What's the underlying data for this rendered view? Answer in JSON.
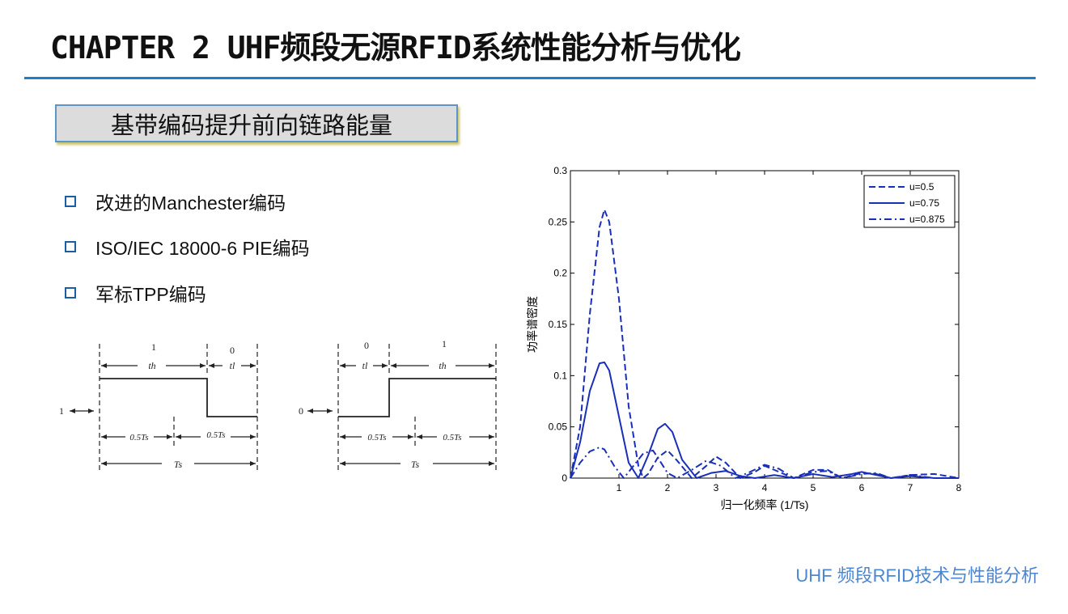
{
  "header": {
    "title": "CHAPTER 2 UHF频段无源RFID系统性能分析与优化"
  },
  "section": {
    "label": "基带编码提升前向链路能量"
  },
  "bullets": [
    "改进的Manchester编码",
    "ISO/IEC 18000-6 PIE编码",
    "军标TPP编码"
  ],
  "footer": {
    "text": "UHF 频段RFID技术与性能分析"
  },
  "colors": {
    "accent": "#1f7fc6",
    "series": "#1a2fb8",
    "footer": "#4a86d4"
  },
  "waveform_left": {
    "level": "1",
    "top_labels": [
      "1",
      "0"
    ],
    "duration_labels": [
      "th",
      "tl"
    ],
    "half_labels": [
      "0.5Ts",
      "0.5Ts"
    ],
    "total_label": "Ts"
  },
  "waveform_right": {
    "level": "0",
    "top_labels": [
      "0",
      "1"
    ],
    "duration_labels": [
      "tl",
      "th"
    ],
    "half_labels": [
      "0.5Ts",
      "0.5Ts"
    ],
    "total_label": "Ts"
  },
  "chart_data": {
    "type": "line",
    "xlabel": "归一化频率 (1/Ts)",
    "ylabel": "功率谱密度",
    "xlim": [
      0,
      8
    ],
    "ylim": [
      0,
      0.3
    ],
    "xticks": [
      1,
      2,
      3,
      4,
      5,
      6,
      7,
      8
    ],
    "yticks": [
      0,
      0.05,
      0.1,
      0.15,
      0.2,
      0.25,
      0.3
    ],
    "ytick_labels": [
      "0",
      "0.05",
      "0.1",
      "0.15",
      "0.2",
      "0.25",
      "0.3"
    ],
    "legend_position": "top-right",
    "grid": false,
    "series": [
      {
        "name": "u=0.5",
        "style": "dashed",
        "x": [
          0,
          0.2,
          0.4,
          0.6,
          0.7,
          0.8,
          1.0,
          1.2,
          1.4,
          1.5,
          1.6,
          1.8,
          2.0,
          2.2,
          2.5,
          2.8,
          3.0,
          3.2,
          3.5,
          3.8,
          4.0,
          4.3,
          4.6,
          5.0,
          5.3,
          5.6,
          6.0,
          6.3,
          6.6,
          7.0,
          7.5,
          8.0
        ],
        "y": [
          0.0,
          0.05,
          0.16,
          0.245,
          0.262,
          0.25,
          0.175,
          0.07,
          0.012,
          0.0,
          0.004,
          0.02,
          0.027,
          0.017,
          0.0,
          0.012,
          0.021,
          0.015,
          0.0,
          0.006,
          0.012,
          0.006,
          0.0,
          0.008,
          0.008,
          0.0,
          0.005,
          0.004,
          0.0,
          0.003,
          0.004,
          0.0
        ]
      },
      {
        "name": "u=0.75",
        "style": "solid",
        "x": [
          0,
          0.2,
          0.4,
          0.6,
          0.7,
          0.8,
          1.0,
          1.2,
          1.4,
          1.6,
          1.8,
          1.95,
          2.1,
          2.3,
          2.6,
          2.9,
          3.2,
          3.5,
          3.8,
          4.2,
          4.6,
          5.0,
          5.4,
          5.8,
          6.0,
          6.2,
          6.6,
          7.0,
          7.5,
          8.0
        ],
        "y": [
          0.0,
          0.035,
          0.085,
          0.112,
          0.113,
          0.105,
          0.06,
          0.015,
          0.0,
          0.022,
          0.048,
          0.053,
          0.045,
          0.018,
          0.0,
          0.005,
          0.007,
          0.002,
          0.0,
          0.003,
          0.0,
          0.004,
          0.001,
          0.004,
          0.006,
          0.004,
          0.0,
          0.002,
          0.0,
          0.0
        ]
      },
      {
        "name": "u=0.875",
        "style": "dashdot",
        "x": [
          0,
          0.2,
          0.4,
          0.6,
          0.7,
          0.9,
          1.1,
          1.3,
          1.5,
          1.7,
          1.8,
          2.0,
          2.2,
          2.5,
          2.8,
          3.1,
          3.4,
          3.7,
          4.0,
          4.3,
          4.6,
          5.0,
          5.3,
          5.6,
          6.0,
          6.3,
          6.6,
          7.0,
          7.5,
          8.0
        ],
        "y": [
          0.0,
          0.015,
          0.026,
          0.03,
          0.028,
          0.012,
          0.0,
          0.012,
          0.024,
          0.027,
          0.02,
          0.005,
          0.0,
          0.008,
          0.017,
          0.012,
          0.0,
          0.006,
          0.013,
          0.009,
          0.0,
          0.006,
          0.007,
          0.0,
          0.004,
          0.005,
          0.0,
          0.003,
          0.0,
          0.0
        ]
      }
    ]
  }
}
